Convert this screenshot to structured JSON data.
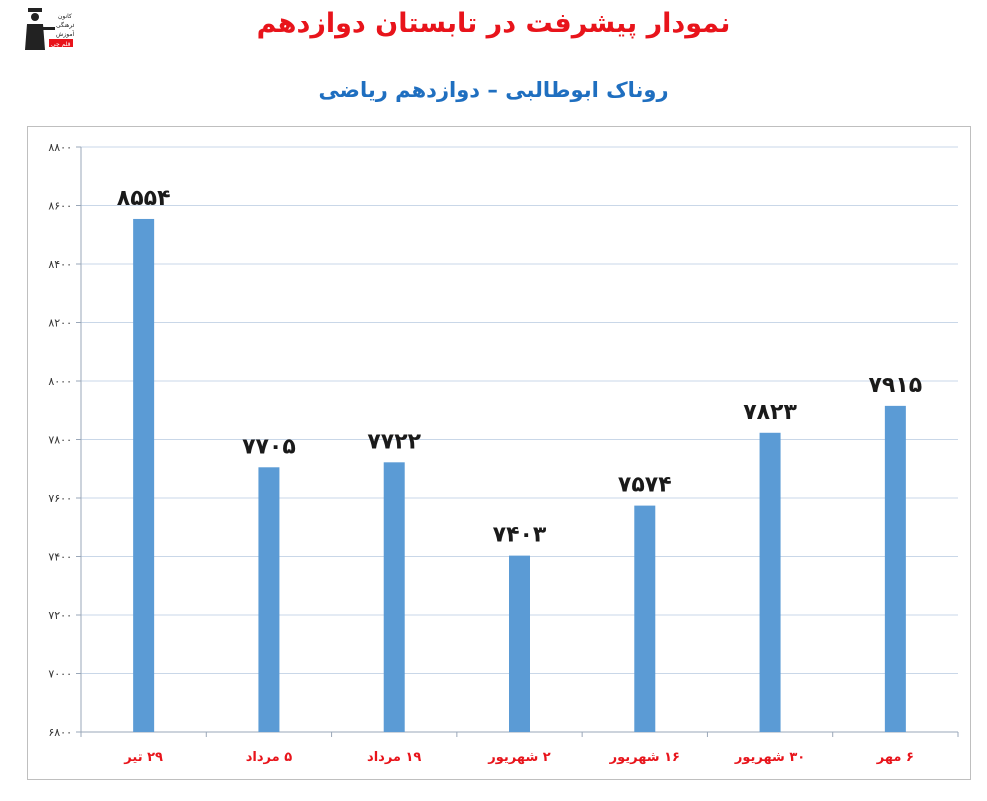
{
  "header": {
    "title": "نمودار پیشرفت در تابستان دوازدهم",
    "subtitle": "روناک ابوطالبی – دوازدهم ریاضی"
  },
  "logo": {
    "text_lines": [
      "کانون",
      "فرهنگی",
      "آموزش"
    ],
    "badge": "قلم چی",
    "colors": {
      "figure": "#222222",
      "badge": "#e8141b"
    }
  },
  "colors": {
    "title": "#e8141b",
    "subtitle": "#1f6fc0",
    "bar": "#5b9bd5",
    "grid": "#c9d7e8",
    "xtick": "#e8141b"
  },
  "chart_data": {
    "type": "bar",
    "title": "نمودار پیشرفت در تابستان دوازدهم",
    "subtitle": "روناک ابوطالبی – دوازدهم ریاضی",
    "categories": [
      "۲۹ تیر",
      "۵ مرداد",
      "۱۹ مرداد",
      "۲ شهریور",
      "۱۶ شهریور",
      "۳۰ شهریور",
      "۶ مهر"
    ],
    "values": [
      8554,
      7705,
      7722,
      7403,
      7574,
      7823,
      7915
    ],
    "value_labels": [
      "۸۵۵۴",
      "۷۷۰۵",
      "۷۷۲۲",
      "۷۴۰۳",
      "۷۵۷۴",
      "۷۸۲۳",
      "۷۹۱۵"
    ],
    "ylim": [
      6800,
      8800
    ],
    "yticks": [
      6800,
      7000,
      7200,
      7400,
      7600,
      7800,
      8000,
      8200,
      8400,
      8600,
      8800
    ],
    "ytick_labels": [
      "۶۸۰۰",
      "۷۰۰۰",
      "۷۲۰۰",
      "۷۴۰۰",
      "۷۶۰۰",
      "۷۸۰۰",
      "۸۰۰۰",
      "۸۲۰۰",
      "۸۴۰۰",
      "۸۶۰۰",
      "۸۸۰۰"
    ],
    "grid": true,
    "legend": "none",
    "xlabel": "",
    "ylabel": ""
  }
}
